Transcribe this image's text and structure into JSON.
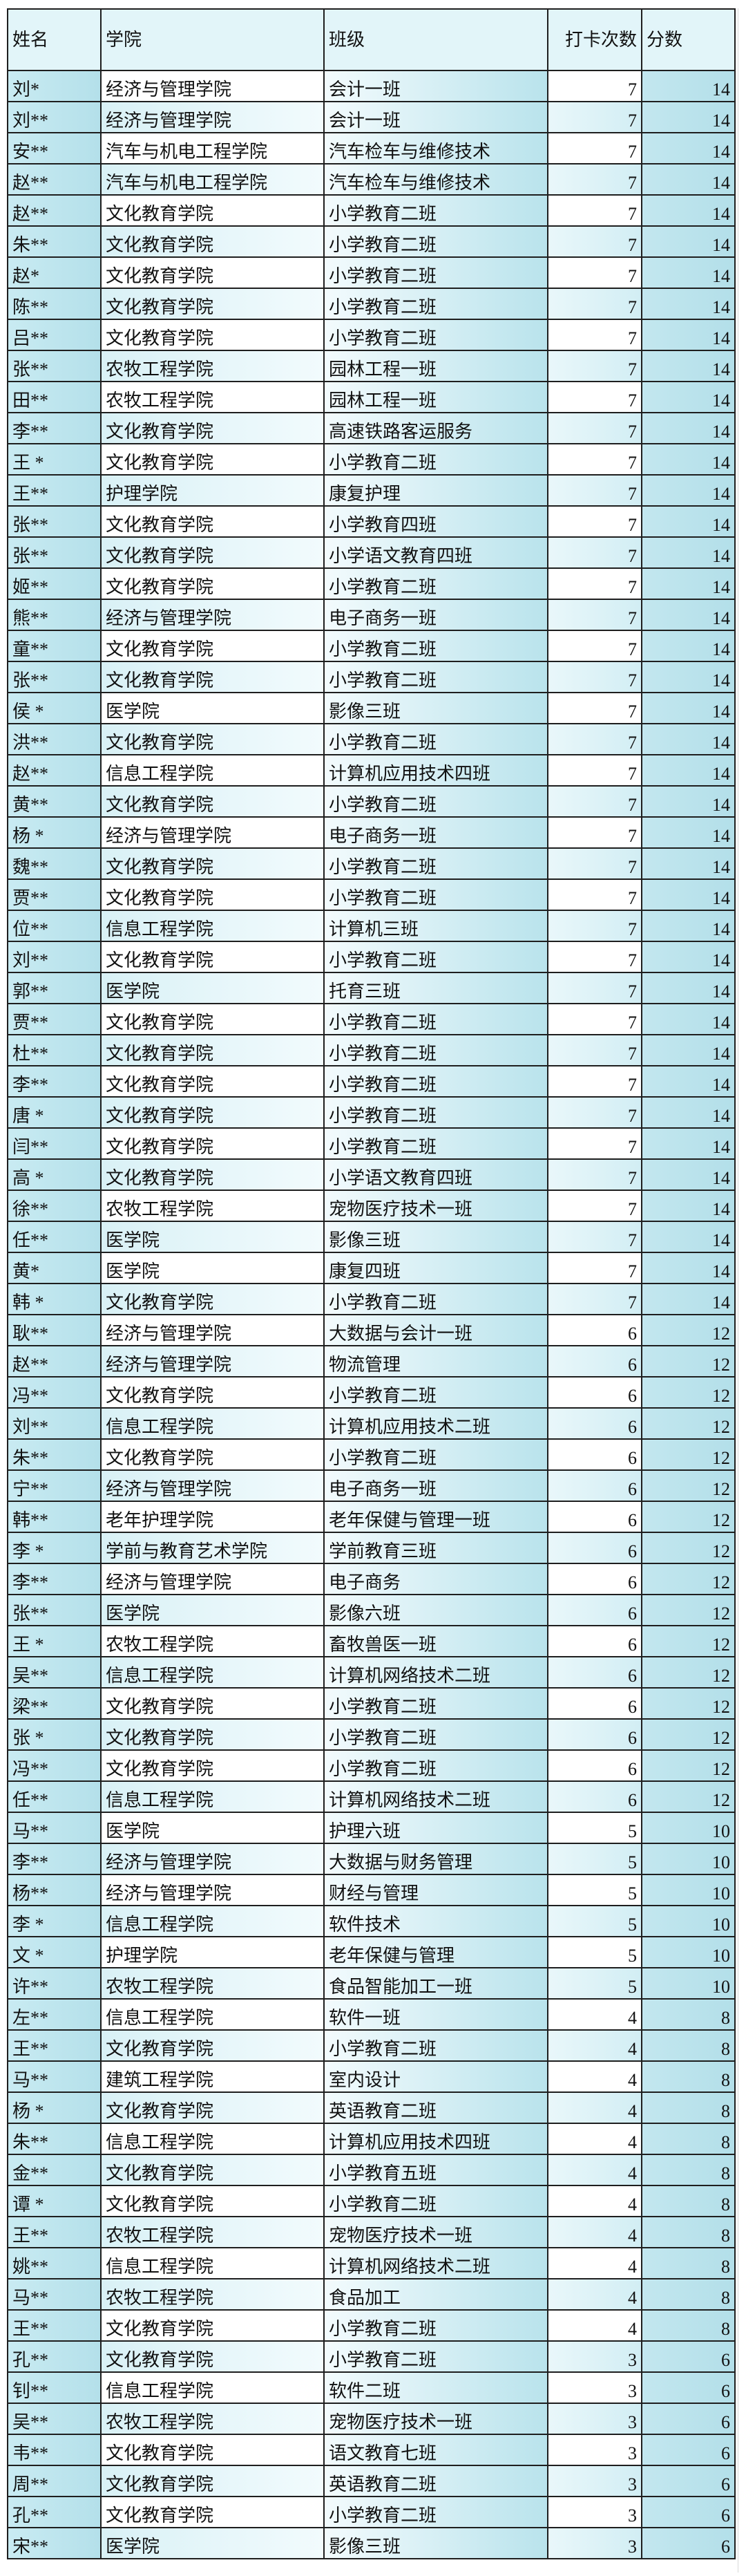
{
  "table": {
    "headers": [
      "姓名",
      "学院",
      "班级",
      "打卡次数",
      "分数"
    ],
    "rows": [
      [
        "刘*",
        "经济与管理学院",
        "会计一班",
        7,
        14
      ],
      [
        "刘**",
        "经济与管理学院",
        "会计一班",
        7,
        14
      ],
      [
        "安**",
        "汽车与机电工程学院",
        "汽车检车与维修技术",
        7,
        14
      ],
      [
        "赵**",
        "汽车与机电工程学院",
        "汽车检车与维修技术",
        7,
        14
      ],
      [
        "赵**",
        "文化教育学院",
        "小学教育二班",
        7,
        14
      ],
      [
        "朱**",
        "文化教育学院",
        "小学教育二班",
        7,
        14
      ],
      [
        "赵*",
        "文化教育学院",
        "小学教育二班",
        7,
        14
      ],
      [
        "陈**",
        "文化教育学院",
        "小学教育二班",
        7,
        14
      ],
      [
        "吕**",
        "文化教育学院",
        "小学教育二班",
        7,
        14
      ],
      [
        "张**",
        "农牧工程学院",
        "园林工程一班",
        7,
        14
      ],
      [
        "田**",
        "农牧工程学院",
        "园林工程一班",
        7,
        14
      ],
      [
        "李**",
        "文化教育学院",
        "高速铁路客运服务",
        7,
        14
      ],
      [
        "王 *",
        "文化教育学院",
        "小学教育二班",
        7,
        14
      ],
      [
        "王**",
        "护理学院",
        "康复护理",
        7,
        14
      ],
      [
        "张**",
        "文化教育学院",
        "小学教育四班",
        7,
        14
      ],
      [
        "张**",
        "文化教育学院",
        "小学语文教育四班",
        7,
        14
      ],
      [
        "姬**",
        "文化教育学院",
        "小学教育二班",
        7,
        14
      ],
      [
        "熊**",
        "经济与管理学院",
        "电子商务一班",
        7,
        14
      ],
      [
        "童**",
        "文化教育学院",
        "小学教育二班",
        7,
        14
      ],
      [
        "张**",
        "文化教育学院",
        "小学教育二班",
        7,
        14
      ],
      [
        "侯 *",
        "医学院",
        "影像三班",
        7,
        14
      ],
      [
        "洪**",
        "文化教育学院",
        "小学教育二班",
        7,
        14
      ],
      [
        "赵**",
        "信息工程学院",
        "计算机应用技术四班",
        7,
        14
      ],
      [
        "黄**",
        "文化教育学院",
        "小学教育二班",
        7,
        14
      ],
      [
        "杨 *",
        "经济与管理学院",
        "电子商务一班",
        7,
        14
      ],
      [
        "魏**",
        "文化教育学院",
        "小学教育二班",
        7,
        14
      ],
      [
        "贾**",
        "文化教育学院",
        "小学教育二班",
        7,
        14
      ],
      [
        "位**",
        "信息工程学院",
        "计算机三班",
        7,
        14
      ],
      [
        "刘**",
        "文化教育学院",
        "小学教育二班",
        7,
        14
      ],
      [
        "郭**",
        "医学院",
        "托育三班",
        7,
        14
      ],
      [
        "贾**",
        "文化教育学院",
        "小学教育二班",
        7,
        14
      ],
      [
        "杜**",
        "文化教育学院",
        "小学教育二班",
        7,
        14
      ],
      [
        "李**",
        "文化教育学院",
        "小学教育二班",
        7,
        14
      ],
      [
        "唐 *",
        "文化教育学院",
        "小学教育二班",
        7,
        14
      ],
      [
        "闫**",
        "文化教育学院",
        "小学教育二班",
        7,
        14
      ],
      [
        "高 *",
        "文化教育学院",
        "小学语文教育四班",
        7,
        14
      ],
      [
        "徐**",
        "农牧工程学院",
        "宠物医疗技术一班",
        7,
        14
      ],
      [
        "任**",
        "医学院",
        "影像三班",
        7,
        14
      ],
      [
        "黄*",
        "医学院",
        "康复四班",
        7,
        14
      ],
      [
        "韩 *",
        "文化教育学院",
        "小学教育二班",
        7,
        14
      ],
      [
        "耿**",
        "经济与管理学院",
        "大数据与会计一班",
        6,
        12
      ],
      [
        "赵**",
        "经济与管理学院",
        "物流管理",
        6,
        12
      ],
      [
        "冯**",
        "文化教育学院",
        "小学教育二班",
        6,
        12
      ],
      [
        "刘**",
        "信息工程学院",
        "计算机应用技术二班",
        6,
        12
      ],
      [
        "朱**",
        "文化教育学院",
        "小学教育二班",
        6,
        12
      ],
      [
        "宁**",
        "经济与管理学院",
        "电子商务一班",
        6,
        12
      ],
      [
        "韩**",
        "老年护理学院",
        "老年保健与管理一班",
        6,
        12
      ],
      [
        "李 *",
        "学前与教育艺术学院",
        "学前教育三班",
        6,
        12
      ],
      [
        "李**",
        "经济与管理学院",
        "电子商务",
        6,
        12
      ],
      [
        "张**",
        "医学院",
        "影像六班",
        6,
        12
      ],
      [
        "王 *",
        "农牧工程学院",
        "畜牧兽医一班",
        6,
        12
      ],
      [
        "吴**",
        "信息工程学院",
        "计算机网络技术二班",
        6,
        12
      ],
      [
        "梁**",
        "文化教育学院",
        "小学教育二班",
        6,
        12
      ],
      [
        "张 *",
        "文化教育学院",
        "小学教育二班",
        6,
        12
      ],
      [
        "冯**",
        "文化教育学院",
        "小学教育二班",
        6,
        12
      ],
      [
        "任**",
        "信息工程学院",
        "计算机网络技术二班",
        6,
        12
      ],
      [
        "马**",
        "医学院",
        "护理六班",
        5,
        10
      ],
      [
        "李**",
        "经济与管理学院",
        "大数据与财务管理",
        5,
        10
      ],
      [
        "杨**",
        "经济与管理学院",
        "财经与管理",
        5,
        10
      ],
      [
        "李 *",
        "信息工程学院",
        "软件技术",
        5,
        10
      ],
      [
        "文 *",
        "护理学院",
        "老年保健与管理",
        5,
        10
      ],
      [
        "许**",
        "农牧工程学院",
        "食品智能加工一班",
        5,
        10
      ],
      [
        "左**",
        "信息工程学院",
        "软件一班",
        4,
        8
      ],
      [
        "王**",
        "文化教育学院",
        "小学教育二班",
        4,
        8
      ],
      [
        "马**",
        "建筑工程学院",
        "室内设计",
        4,
        8
      ],
      [
        "杨 *",
        "文化教育学院",
        "英语教育二班",
        4,
        8
      ],
      [
        "朱**",
        "信息工程学院",
        "计算机应用技术四班",
        4,
        8
      ],
      [
        "金**",
        "文化教育学院",
        "小学教育五班",
        4,
        8
      ],
      [
        "谭 *",
        "文化教育学院",
        "小学教育二班",
        4,
        8
      ],
      [
        "王**",
        "农牧工程学院",
        "宠物医疗技术一班",
        4,
        8
      ],
      [
        "姚**",
        "信息工程学院",
        "计算机网络技术二班",
        4,
        8
      ],
      [
        "马**",
        "农牧工程学院",
        "食品加工",
        4,
        8
      ],
      [
        "王**",
        "文化教育学院",
        "小学教育二班",
        4,
        8
      ],
      [
        "孔**",
        "文化教育学院",
        "小学教育二班",
        3,
        6
      ],
      [
        "钊**",
        "信息工程学院",
        "软件二班",
        3,
        6
      ],
      [
        "吴**",
        "农牧工程学院",
        "宠物医疗技术一班",
        3,
        6
      ],
      [
        "韦**",
        "文化教育学院",
        "语文教育七班",
        3,
        6
      ],
      [
        "周**",
        "文化教育学院",
        "英语教育二班",
        3,
        6
      ],
      [
        "孔**",
        "文化教育学院",
        "小学教育二班",
        3,
        6
      ],
      [
        "宋**",
        "医学院",
        "影像三班",
        3,
        6
      ]
    ]
  },
  "colors": {
    "header_bg": "#e2f5f9",
    "accent_cyan": "#b4e0ea",
    "border": "#1e1e1e"
  }
}
